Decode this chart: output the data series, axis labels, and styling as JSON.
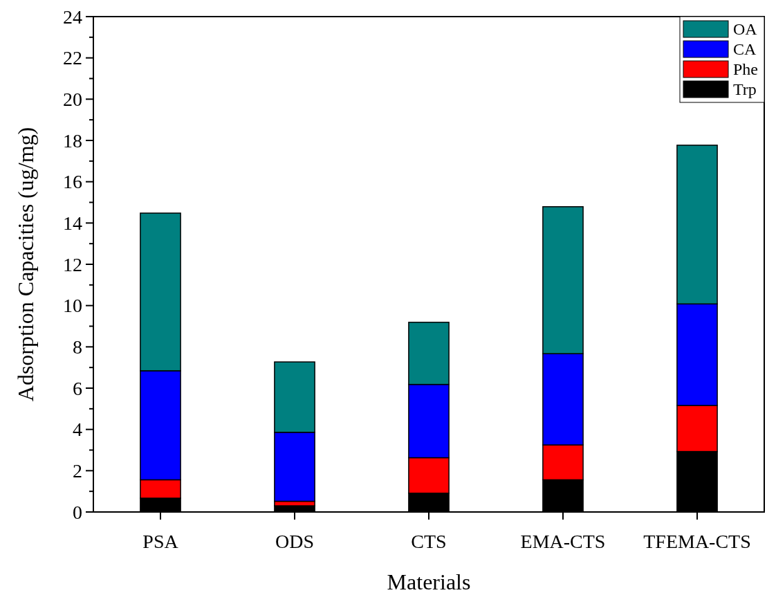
{
  "chart_data": {
    "type": "bar",
    "stacked": true,
    "xlabel": "Materials",
    "ylabel": "Adsorption Capacities (ug/mg)",
    "categories": [
      "PSA",
      "ODS",
      "CTS",
      "EMA-CTS",
      "TFEMA-CTS"
    ],
    "series": [
      {
        "name": "Trp",
        "color": "#000000",
        "values": [
          0.67,
          0.3,
          0.91,
          1.56,
          2.93
        ]
      },
      {
        "name": "Phe",
        "color": "#ff0000",
        "values": [
          0.89,
          0.22,
          1.72,
          1.69,
          2.23
        ]
      },
      {
        "name": "CA",
        "color": "#0000ff",
        "values": [
          5.28,
          3.34,
          3.55,
          4.42,
          4.92
        ]
      },
      {
        "name": "OA",
        "color": "#008080",
        "values": [
          7.64,
          3.41,
          3.01,
          7.12,
          7.69
        ]
      }
    ],
    "ylim": [
      0,
      24
    ],
    "yticks": [
      0,
      {
        "value": 1,
        "label": null
      },
      2,
      {
        "value": 3,
        "label": null
      },
      4,
      {
        "value": 5,
        "label": null
      },
      6,
      {
        "value": 7,
        "label": null
      },
      8,
      {
        "value": 9,
        "label": null
      },
      10,
      {
        "value": 11,
        "label": null
      },
      12,
      {
        "value": 13,
        "label": null
      },
      14,
      {
        "value": 15,
        "label": null
      },
      16,
      {
        "value": 17,
        "label": null
      },
      18,
      {
        "value": 19,
        "label": null
      },
      20,
      {
        "value": 21,
        "label": null
      },
      22,
      {
        "value": 23,
        "label": null
      },
      24
    ],
    "grid": false,
    "legend": "top right"
  }
}
